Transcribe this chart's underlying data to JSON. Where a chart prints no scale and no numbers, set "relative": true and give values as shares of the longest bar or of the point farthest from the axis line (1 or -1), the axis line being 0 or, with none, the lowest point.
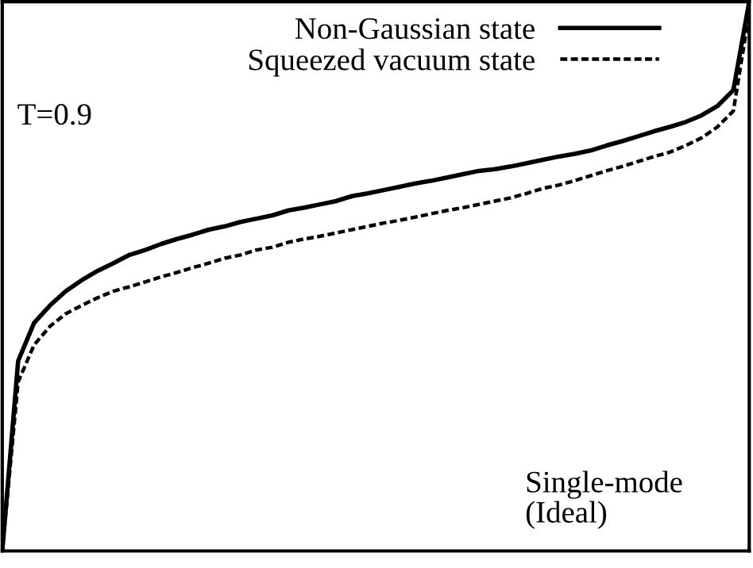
{
  "chart_data": {
    "type": "line",
    "relative": true,
    "legend": "top right",
    "marker": "none",
    "annotations": [
      "T=0.9",
      "Single-mode\n(Ideal)"
    ],
    "categories": [
      null,
      null,
      null,
      null,
      null,
      null,
      null,
      null,
      null,
      null,
      null,
      null,
      null,
      null,
      null,
      null,
      null,
      null,
      null,
      null,
      null,
      null,
      null,
      null,
      null,
      null,
      null,
      null,
      null,
      null,
      null,
      null,
      null,
      null,
      null,
      null,
      null,
      null,
      null,
      null,
      null,
      null,
      null,
      null,
      null,
      null,
      null,
      null
    ],
    "series": [
      {
        "name": "Non-Gaussian state",
        "color": "#000000",
        "line_style": "solid",
        "values": [
          0,
          0.346,
          0.415,
          0.447,
          0.473,
          0.493,
          0.51,
          0.524,
          0.539,
          0.548,
          0.559,
          0.568,
          0.576,
          0.585,
          0.591,
          0.599,
          0.605,
          0.611,
          0.62,
          0.625,
          0.631,
          0.637,
          0.646,
          0.651,
          0.657,
          0.663,
          0.669,
          0.674,
          0.68,
          0.686,
          0.692,
          0.695,
          0.7,
          0.706,
          0.712,
          0.718,
          0.723,
          0.729,
          0.738,
          0.746,
          0.755,
          0.764,
          0.772,
          0.781,
          0.793,
          0.81,
          0.839,
          1.0
        ]
      },
      {
        "name": "Squeezed vacuum state",
        "color": "#000000",
        "line_style": "dotted",
        "values": [
          0,
          0.308,
          0.375,
          0.409,
          0.432,
          0.447,
          0.461,
          0.473,
          0.481,
          0.49,
          0.499,
          0.507,
          0.516,
          0.524,
          0.533,
          0.539,
          0.548,
          0.553,
          0.562,
          0.568,
          0.573,
          0.579,
          0.585,
          0.591,
          0.597,
          0.602,
          0.608,
          0.614,
          0.62,
          0.625,
          0.631,
          0.637,
          0.643,
          0.651,
          0.66,
          0.666,
          0.674,
          0.683,
          0.692,
          0.7,
          0.709,
          0.718,
          0.726,
          0.738,
          0.752,
          0.772,
          0.801,
          0.98
        ]
      }
    ]
  }
}
